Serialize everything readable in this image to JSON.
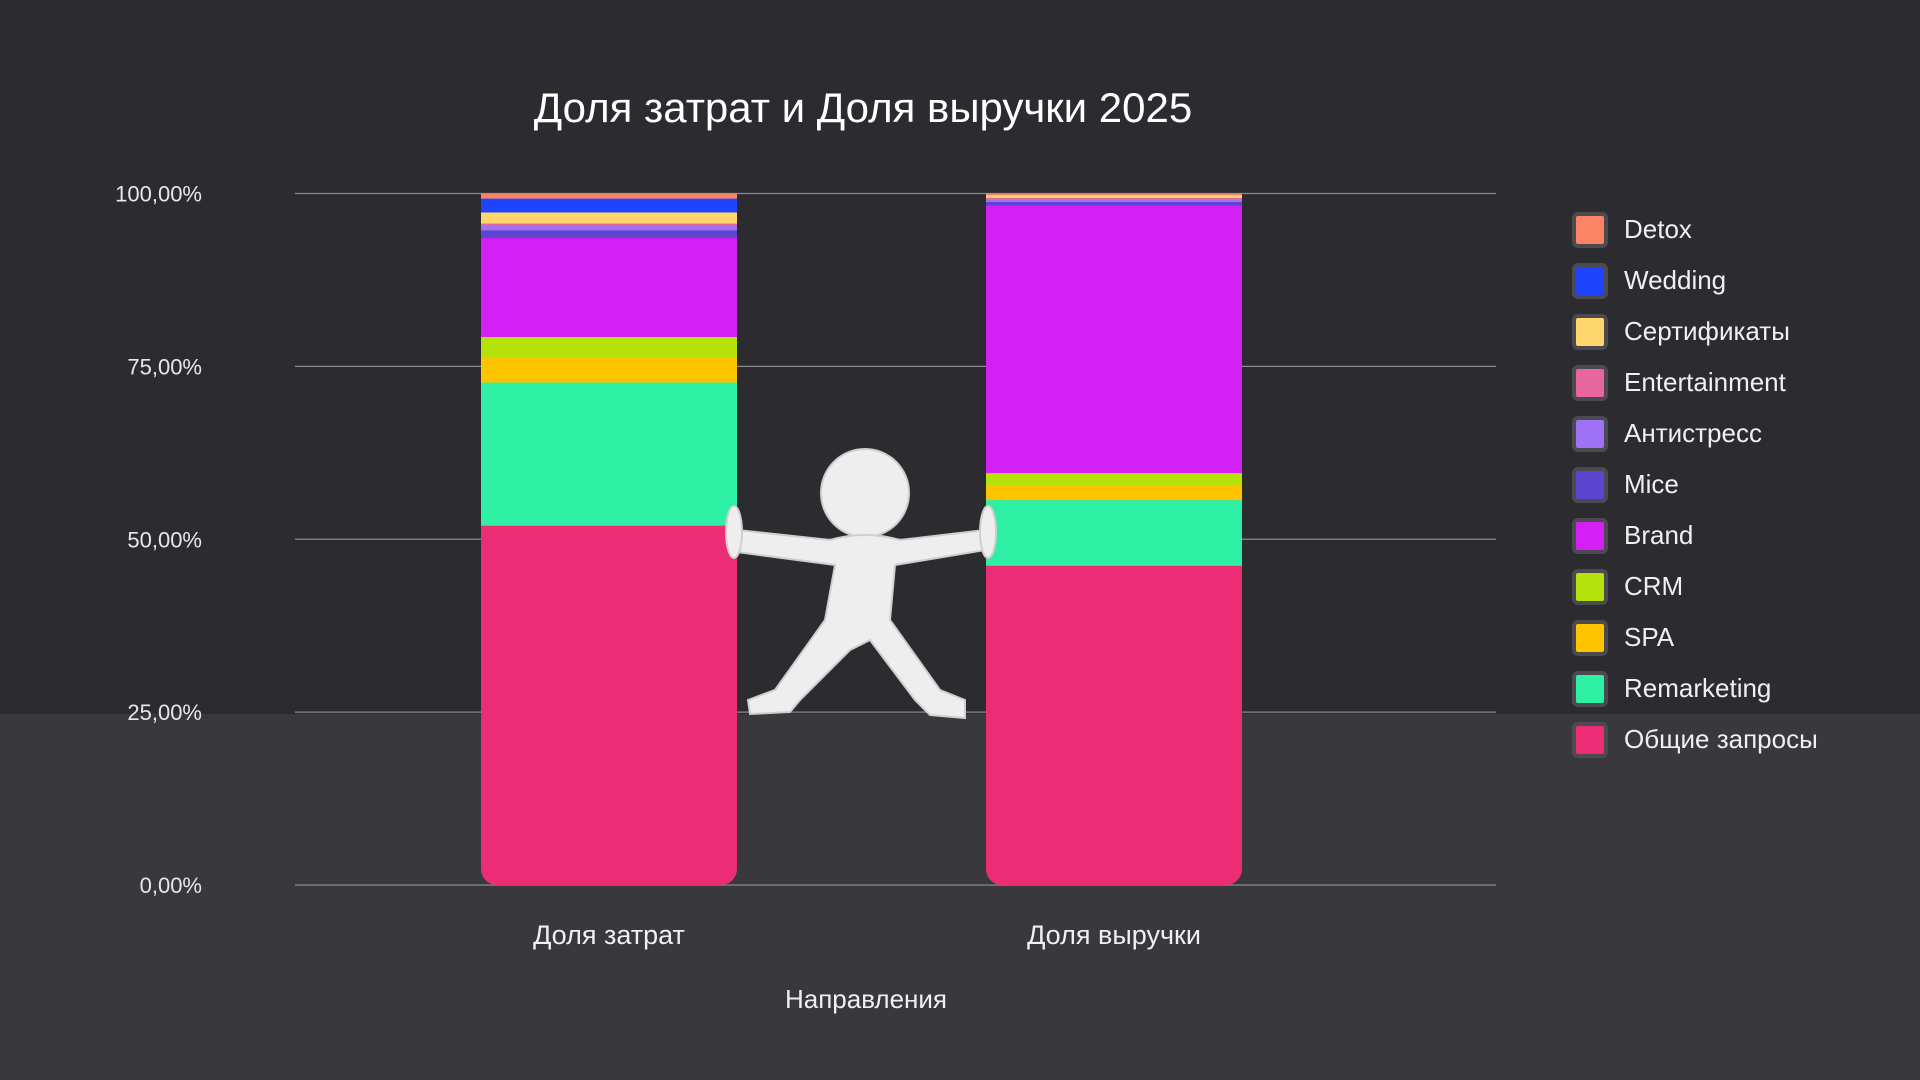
{
  "chart_data": {
    "type": "bar",
    "stacked": true,
    "title": "Доля затрат и Доля выручки 2025",
    "xlabel": "Направления",
    "ylabel": "",
    "ylim": [
      0,
      100
    ],
    "yticks": [
      "0,00%",
      "25,00%",
      "50,00%",
      "75,00%",
      "100,00%"
    ],
    "grid": true,
    "legend_position": "right",
    "categories": [
      "Доля затрат",
      "Доля выручки"
    ],
    "series": [
      {
        "name": "Общие запросы",
        "color": "#ec2d73",
        "values": [
          52.0,
          46.2
        ]
      },
      {
        "name": "Remarketing",
        "color": "#2ef0a4",
        "values": [
          20.7,
          9.5
        ]
      },
      {
        "name": "SPA",
        "color": "#ffc400",
        "values": [
          3.6,
          2.1
        ]
      },
      {
        "name": "CRM",
        "color": "#b5e20b",
        "values": [
          3.0,
          1.8
        ]
      },
      {
        "name": "Brand",
        "color": "#d41ff5",
        "values": [
          14.3,
          38.7
        ]
      },
      {
        "name": "Mice",
        "color": "#5c45d0",
        "values": [
          1.1,
          0.5
        ]
      },
      {
        "name": "Антистресс",
        "color": "#9f72f5",
        "values": [
          0.7,
          0.3
        ]
      },
      {
        "name": "Entertainment",
        "color": "#e8669c",
        "values": [
          0.3,
          0.3
        ]
      },
      {
        "name": "Сертификаты",
        "color": "#ffd66b",
        "values": [
          1.6,
          0.4
        ]
      },
      {
        "name": "Wedding",
        "color": "#1f44ff",
        "values": [
          2.0,
          0.0
        ]
      },
      {
        "name": "Detox",
        "color": "#fb8466",
        "values": [
          0.7,
          0.2
        ]
      }
    ]
  },
  "legend_order": [
    "Detox",
    "Wedding",
    "Сертификаты",
    "Entertainment",
    "Антистресс",
    "Mice",
    "Brand",
    "CRM",
    "SPA",
    "Remarketing",
    "Общие запросы"
  ]
}
